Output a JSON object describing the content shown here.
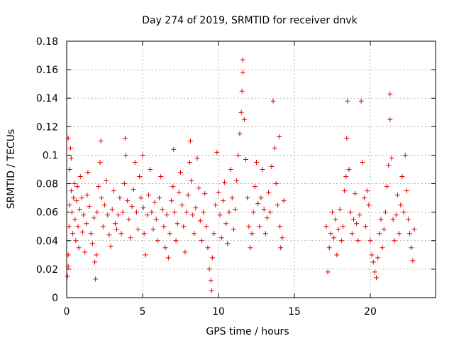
{
  "chart_data": {
    "type": "scatter",
    "title": "Day 274 of 2019, SRMTID for receiver dnvk",
    "xlabel": "GPS time / hours",
    "ylabel": "SRMTID / TECUs",
    "xlim": [
      0,
      24.3
    ],
    "ylim": [
      0,
      0.18
    ],
    "xticks": [
      0,
      5,
      10,
      15,
      20
    ],
    "xtick_labels": [
      "0",
      "5",
      "10",
      "15",
      "20"
    ],
    "yticks": [
      0,
      0.02,
      0.04,
      0.06,
      0.08,
      0.1,
      0.12,
      0.14,
      0.16,
      0.18
    ],
    "ytick_labels": [
      "0",
      "0.02",
      "0.04",
      "0.06",
      "0.08",
      "0.1",
      "0.12",
      "0.14",
      "0.16",
      "0.18"
    ],
    "grid": true,
    "marker": "+",
    "color": "#e00000",
    "series": [
      {
        "name": "SRMTID",
        "points": [
          [
            0.05,
            0.015
          ],
          [
            0.1,
            0.022
          ],
          [
            0.1,
            0.03
          ],
          [
            0.15,
            0.05
          ],
          [
            0.2,
            0.065
          ],
          [
            0.2,
            0.09
          ],
          [
            0.25,
            0.105
          ],
          [
            0.1,
            0.112
          ],
          [
            0.3,
            0.098
          ],
          [
            0.3,
            0.075
          ],
          [
            0.35,
            0.06
          ],
          [
            0.4,
            0.045
          ],
          [
            0.45,
            0.07
          ],
          [
            0.5,
            0.08
          ],
          [
            0.55,
            0.055
          ],
          [
            0.6,
            0.04
          ],
          [
            0.65,
            0.068
          ],
          [
            0.7,
            0.078
          ],
          [
            0.75,
            0.05
          ],
          [
            0.8,
            0.035
          ],
          [
            0.85,
            0.062
          ],
          [
            0.9,
            0.085
          ],
          [
            1.0,
            0.07
          ],
          [
            1.05,
            0.046
          ],
          [
            1.1,
            0.058
          ],
          [
            1.2,
            0.032
          ],
          [
            1.3,
            0.052
          ],
          [
            1.35,
            0.072
          ],
          [
            1.4,
            0.088
          ],
          [
            1.5,
            0.064
          ],
          [
            1.6,
            0.045
          ],
          [
            1.7,
            0.038
          ],
          [
            1.8,
            0.056
          ],
          [
            1.85,
            0.025
          ],
          [
            1.9,
            0.013
          ],
          [
            1.95,
            0.03
          ],
          [
            2.0,
            0.06
          ],
          [
            2.1,
            0.078
          ],
          [
            2.2,
            0.095
          ],
          [
            2.25,
            0.11
          ],
          [
            2.3,
            0.07
          ],
          [
            2.4,
            0.05
          ],
          [
            2.5,
            0.065
          ],
          [
            2.6,
            0.082
          ],
          [
            2.7,
            0.058
          ],
          [
            2.8,
            0.044
          ],
          [
            2.9,
            0.036
          ],
          [
            3.0,
            0.062
          ],
          [
            3.1,
            0.075
          ],
          [
            3.2,
            0.052
          ],
          [
            3.3,
            0.048
          ],
          [
            3.4,
            0.058
          ],
          [
            3.5,
            0.07
          ],
          [
            3.6,
            0.045
          ],
          [
            3.7,
            0.06
          ],
          [
            3.8,
            0.08
          ],
          [
            3.85,
            0.112
          ],
          [
            3.9,
            0.1
          ],
          [
            4.0,
            0.068
          ],
          [
            4.1,
            0.055
          ],
          [
            4.2,
            0.042
          ],
          [
            4.3,
            0.064
          ],
          [
            4.4,
            0.076
          ],
          [
            4.5,
            0.095
          ],
          [
            4.6,
            0.06
          ],
          [
            4.7,
            0.048
          ],
          [
            4.8,
            0.085
          ],
          [
            4.9,
            0.07
          ],
          [
            5.0,
            0.1
          ],
          [
            5.05,
            0.063
          ],
          [
            5.1,
            0.045
          ],
          [
            5.2,
            0.03
          ],
          [
            5.3,
            0.058
          ],
          [
            5.4,
            0.072
          ],
          [
            5.5,
            0.09
          ],
          [
            5.6,
            0.06
          ],
          [
            5.7,
            0.048
          ],
          [
            5.8,
            0.067
          ],
          [
            5.9,
            0.055
          ],
          [
            6.0,
            0.04
          ],
          [
            6.1,
            0.07
          ],
          [
            6.2,
            0.085
          ],
          [
            6.3,
            0.062
          ],
          [
            6.4,
            0.05
          ],
          [
            6.5,
            0.035
          ],
          [
            6.6,
            0.058
          ],
          [
            6.7,
            0.028
          ],
          [
            6.8,
            0.045
          ],
          [
            6.9,
            0.068
          ],
          [
            7.0,
            0.078
          ],
          [
            7.05,
            0.104
          ],
          [
            7.1,
            0.06
          ],
          [
            7.2,
            0.04
          ],
          [
            7.3,
            0.052
          ],
          [
            7.4,
            0.074
          ],
          [
            7.5,
            0.088
          ],
          [
            7.6,
            0.065
          ],
          [
            7.7,
            0.05
          ],
          [
            7.8,
            0.032
          ],
          [
            7.9,
            0.06
          ],
          [
            8.0,
            0.072
          ],
          [
            8.1,
            0.095
          ],
          [
            8.15,
            0.11
          ],
          [
            8.2,
            0.082
          ],
          [
            8.3,
            0.058
          ],
          [
            8.4,
            0.045
          ],
          [
            8.5,
            0.063
          ],
          [
            8.6,
            0.098
          ],
          [
            8.7,
            0.077
          ],
          [
            8.8,
            0.054
          ],
          [
            8.9,
            0.04
          ],
          [
            9.0,
            0.06
          ],
          [
            9.1,
            0.073
          ],
          [
            9.2,
            0.05
          ],
          [
            9.3,
            0.035
          ],
          [
            9.4,
            0.02
          ],
          [
            9.5,
            0.012
          ],
          [
            9.55,
            0.005
          ],
          [
            9.6,
            0.028
          ],
          [
            9.7,
            0.045
          ],
          [
            9.8,
            0.065
          ],
          [
            9.9,
            0.102
          ],
          [
            10.0,
            0.074
          ],
          [
            10.1,
            0.058
          ],
          [
            10.2,
            0.042
          ],
          [
            10.3,
            0.068
          ],
          [
            10.4,
            0.081
          ],
          [
            10.5,
            0.052
          ],
          [
            10.6,
            0.038
          ],
          [
            10.7,
            0.06
          ],
          [
            10.8,
            0.09
          ],
          [
            10.9,
            0.07
          ],
          [
            11.0,
            0.048
          ],
          [
            11.1,
            0.062
          ],
          [
            11.2,
            0.082
          ],
          [
            11.3,
            0.1
          ],
          [
            11.4,
            0.115
          ],
          [
            11.5,
            0.13
          ],
          [
            11.55,
            0.145
          ],
          [
            11.6,
            0.158
          ],
          [
            11.6,
            0.167
          ],
          [
            11.7,
            0.125
          ],
          [
            11.8,
            0.097
          ],
          [
            11.9,
            0.07
          ],
          [
            12.0,
            0.05
          ],
          [
            12.1,
            0.035
          ],
          [
            12.2,
            0.045
          ],
          [
            12.3,
            0.06
          ],
          [
            12.4,
            0.078
          ],
          [
            12.5,
            0.095
          ],
          [
            12.6,
            0.066
          ],
          [
            12.7,
            0.05
          ],
          [
            12.8,
            0.07
          ],
          [
            12.9,
            0.09
          ],
          [
            13.0,
            0.062
          ],
          [
            13.1,
            0.045
          ],
          [
            13.2,
            0.056
          ],
          [
            13.3,
            0.074
          ],
          [
            13.4,
            0.06
          ],
          [
            13.5,
            0.092
          ],
          [
            13.6,
            0.138
          ],
          [
            13.7,
            0.105
          ],
          [
            13.8,
            0.08
          ],
          [
            13.9,
            0.065
          ],
          [
            14.0,
            0.113
          ],
          [
            14.05,
            0.05
          ],
          [
            14.1,
            0.035
          ],
          [
            14.2,
            0.042
          ],
          [
            14.3,
            0.068
          ],
          [
            17.1,
            0.05
          ],
          [
            17.2,
            0.018
          ],
          [
            17.3,
            0.035
          ],
          [
            17.4,
            0.045
          ],
          [
            17.5,
            0.06
          ],
          [
            17.6,
            0.042
          ],
          [
            17.7,
            0.055
          ],
          [
            17.8,
            0.03
          ],
          [
            17.9,
            0.048
          ],
          [
            18.0,
            0.062
          ],
          [
            18.1,
            0.04
          ],
          [
            18.2,
            0.05
          ],
          [
            18.3,
            0.075
          ],
          [
            18.4,
            0.085
          ],
          [
            18.45,
            0.112
          ],
          [
            18.5,
            0.138
          ],
          [
            18.6,
            0.09
          ],
          [
            18.7,
            0.06
          ],
          [
            18.8,
            0.045
          ],
          [
            18.9,
            0.055
          ],
          [
            19.0,
            0.073
          ],
          [
            19.1,
            0.052
          ],
          [
            19.2,
            0.04
          ],
          [
            19.3,
            0.058
          ],
          [
            19.4,
            0.138
          ],
          [
            19.5,
            0.095
          ],
          [
            19.6,
            0.07
          ],
          [
            19.7,
            0.05
          ],
          [
            19.8,
            0.075
          ],
          [
            19.9,
            0.065
          ],
          [
            20.0,
            0.04
          ],
          [
            20.1,
            0.03
          ],
          [
            20.2,
            0.025
          ],
          [
            20.3,
            0.018
          ],
          [
            20.4,
            0.014
          ],
          [
            20.5,
            0.028
          ],
          [
            20.6,
            0.045
          ],
          [
            20.7,
            0.055
          ],
          [
            20.8,
            0.035
          ],
          [
            20.9,
            0.048
          ],
          [
            21.0,
            0.06
          ],
          [
            21.1,
            0.078
          ],
          [
            21.2,
            0.093
          ],
          [
            21.3,
            0.125
          ],
          [
            21.3,
            0.143
          ],
          [
            21.4,
            0.098
          ],
          [
            21.5,
            0.055
          ],
          [
            21.6,
            0.04
          ],
          [
            21.7,
            0.058
          ],
          [
            21.8,
            0.072
          ],
          [
            21.9,
            0.045
          ],
          [
            22.0,
            0.065
          ],
          [
            22.1,
            0.085
          ],
          [
            22.2,
            0.06
          ],
          [
            22.3,
            0.1
          ],
          [
            22.4,
            0.075
          ],
          [
            22.5,
            0.055
          ],
          [
            22.6,
            0.045
          ],
          [
            22.7,
            0.035
          ],
          [
            22.8,
            0.026
          ],
          [
            22.9,
            0.048
          ]
        ]
      }
    ]
  }
}
